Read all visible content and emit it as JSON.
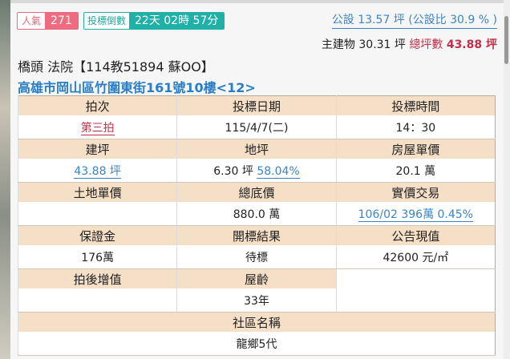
{
  "popularity": {
    "label": "人氣",
    "value": "271"
  },
  "countdown": {
    "label": "投標倒數",
    "value": "22天 02時 57分"
  },
  "public_area": "公設 13.57 坪 (公設比 30.9 % )",
  "main_building": {
    "label": "主建物 30.31 坪",
    "total_label": "總坪數",
    "total_value": "43.88 坪"
  },
  "title": "橋頭 法院【114教51894 蘇OO】",
  "address": "高雄市岡山區竹圍東街161號10樓<12>",
  "table": {
    "auction_round": {
      "label": "拍次",
      "value": "第三拍"
    },
    "bid_date": {
      "label": "投標日期",
      "value": "115/4/7(二)"
    },
    "bid_time": {
      "label": "投標時間",
      "value": "14：30"
    },
    "building_area": {
      "label": "建坪",
      "value": "43.88 坪"
    },
    "land_area": {
      "label": "地坪",
      "value": "6.30 坪",
      "ratio": "58.04%"
    },
    "unit_price": {
      "label": "房屋單價",
      "value": "20.1 萬"
    },
    "land_unit_price": {
      "label": "土地單價",
      "value": ""
    },
    "base_price": {
      "label": "總底價",
      "value": "880.0 萬"
    },
    "actual_trade": {
      "label": "實價交易",
      "value": "106/02 396萬 0.45%"
    },
    "deposit": {
      "label": "保證金",
      "value": "176萬"
    },
    "result": {
      "label": "開標結果",
      "value": "待標"
    },
    "announced_value": {
      "label": "公告現值",
      "value": "42600 元/㎡"
    },
    "post_increment": {
      "label": "拍後增值",
      "value": ""
    },
    "age": {
      "label": "屋齡",
      "value": "33年"
    },
    "community": {
      "label": "社區名稱",
      "value": "龍鄉5代"
    }
  }
}
